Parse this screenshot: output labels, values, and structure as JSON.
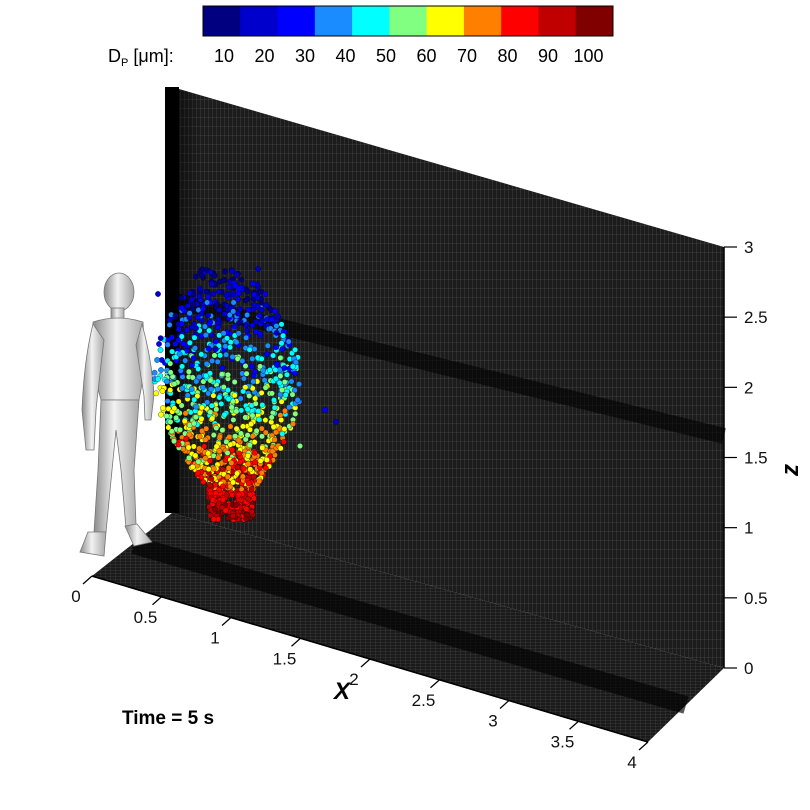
{
  "chart_data": {
    "type": "scatter",
    "title": "",
    "time_label": "Time = 5 s",
    "x_axis": {
      "label": "X",
      "range": [
        0,
        4
      ],
      "ticks": [
        "0",
        "0.5",
        "1",
        "1.5",
        "2",
        "2.5",
        "3",
        "3.5",
        "4"
      ]
    },
    "z_axis": {
      "label": "z",
      "range": [
        0,
        3
      ],
      "ticks": [
        "0",
        "0.5",
        "1",
        "1.5",
        "2",
        "2.5",
        "3"
      ]
    },
    "colorbar": {
      "label_main": "D",
      "label_sub": "P",
      "label_unit": " [μm]:",
      "ticks": [
        "10",
        "20",
        "30",
        "40",
        "50",
        "60",
        "70",
        "80",
        "90",
        "100"
      ],
      "colors": [
        "#000080",
        "#0000cc",
        "#0000ff",
        "#1a8cff",
        "#00ffff",
        "#80ff80",
        "#ffff00",
        "#ff8000",
        "#ff0000",
        "#c00000",
        "#800000"
      ]
    },
    "particle_cloud": {
      "x_center": 0.3,
      "z_range": [
        1.1,
        2.7
      ],
      "diameter_range_um": [
        5,
        100
      ],
      "trend": "largest droplets (80-100 μm) at the bottom near z≈1.1-1.4, smaller droplets (10-40 μm) toward the top near z≈2-2.6"
    },
    "grid": true,
    "scene": "human manikin standing beside a vertical computational mesh plane and a horizontal floor mesh"
  }
}
